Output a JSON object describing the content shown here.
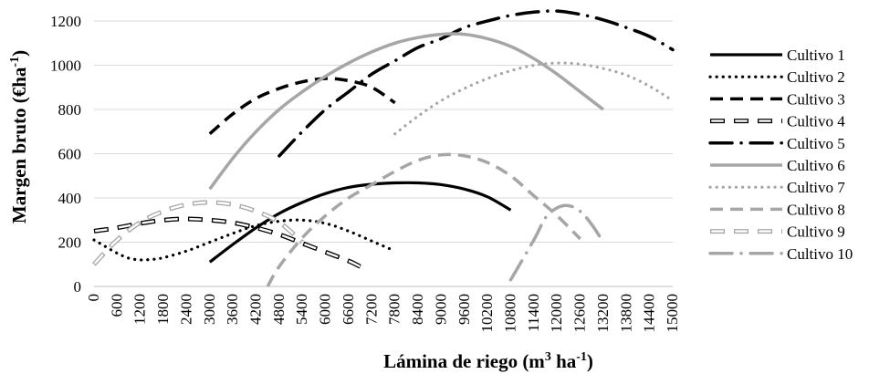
{
  "chart_data": {
    "type": "line",
    "xlabel": "Lámina de riego (m",
    "xlabel_sup": "3",
    "xlabel_suffix": " ha",
    "xlabel_sup2": "-1",
    "xlabel_end": ")",
    "ylabel": "Margen bruto (€ha",
    "ylabel_sup": "-1",
    "ylabel_end": ")",
    "xlim": [
      0,
      15000
    ],
    "ylim": [
      0,
      1200
    ],
    "x_ticks": [
      0,
      600,
      1200,
      1800,
      2400,
      3000,
      3600,
      4200,
      4800,
      5400,
      6000,
      6600,
      7200,
      7800,
      8400,
      9000,
      9600,
      10200,
      10800,
      11400,
      12000,
      12600,
      13200,
      13800,
      14400,
      15000
    ],
    "y_ticks": [
      0,
      200,
      400,
      600,
      800,
      1000,
      1200
    ],
    "grid": "horizontal",
    "legend_position": "right",
    "series": [
      {
        "name": "Cultivo 1",
        "color": "#000000",
        "style": "solid",
        "width": 3.2,
        "points": [
          [
            3000,
            110
          ],
          [
            3600,
            190
          ],
          [
            4200,
            265
          ],
          [
            4800,
            330
          ],
          [
            5400,
            380
          ],
          [
            6000,
            420
          ],
          [
            6600,
            448
          ],
          [
            7200,
            462
          ],
          [
            7800,
            468
          ],
          [
            8400,
            468
          ],
          [
            9000,
            460
          ],
          [
            9600,
            440
          ],
          [
            10200,
            405
          ],
          [
            10800,
            345
          ]
        ]
      },
      {
        "name": "Cultivo 2",
        "color": "#000000",
        "style": "dotted",
        "width": 3.2,
        "points": [
          [
            0,
            210
          ],
          [
            300,
            180
          ],
          [
            600,
            150
          ],
          [
            900,
            128
          ],
          [
            1200,
            120
          ],
          [
            1500,
            122
          ],
          [
            1800,
            130
          ],
          [
            2400,
            160
          ],
          [
            3000,
            200
          ],
          [
            3600,
            240
          ],
          [
            4200,
            275
          ],
          [
            4800,
            295
          ],
          [
            5400,
            300
          ],
          [
            6000,
            285
          ],
          [
            6600,
            250
          ],
          [
            7200,
            205
          ],
          [
            7800,
            160
          ]
        ]
      },
      {
        "name": "Cultivo 3",
        "color": "#000000",
        "style": "dashed",
        "width": 3.5,
        "points": [
          [
            3000,
            690
          ],
          [
            3600,
            780
          ],
          [
            4200,
            850
          ],
          [
            4800,
            895
          ],
          [
            5400,
            925
          ],
          [
            6000,
            940
          ],
          [
            6600,
            930
          ],
          [
            7200,
            900
          ],
          [
            7800,
            830
          ]
        ]
      },
      {
        "name": "Cultivo 4",
        "color": "#000000",
        "style": "hollow-dash",
        "width": 5,
        "points": [
          [
            0,
            250
          ],
          [
            600,
            265
          ],
          [
            1200,
            285
          ],
          [
            1800,
            300
          ],
          [
            2400,
            305
          ],
          [
            3000,
            300
          ],
          [
            3600,
            288
          ],
          [
            4200,
            265
          ],
          [
            4800,
            235
          ],
          [
            5400,
            195
          ],
          [
            6000,
            155
          ],
          [
            6600,
            115
          ],
          [
            6900,
            90
          ]
        ]
      },
      {
        "name": "Cultivo 5",
        "color": "#000000",
        "style": "dashdot",
        "width": 3.5,
        "points": [
          [
            4800,
            590
          ],
          [
            5400,
            700
          ],
          [
            6000,
            800
          ],
          [
            6600,
            880
          ],
          [
            7200,
            960
          ],
          [
            7800,
            1020
          ],
          [
            8400,
            1080
          ],
          [
            9000,
            1120
          ],
          [
            9600,
            1170
          ],
          [
            10200,
            1200
          ],
          [
            10800,
            1225
          ],
          [
            11400,
            1240
          ],
          [
            12000,
            1245
          ],
          [
            12600,
            1230
          ],
          [
            13200,
            1205
          ],
          [
            13800,
            1170
          ],
          [
            14400,
            1130
          ],
          [
            15000,
            1070
          ]
        ]
      },
      {
        "name": "Cultivo 6",
        "color": "#a6a6a6",
        "style": "solid",
        "width": 3.5,
        "points": [
          [
            3000,
            440
          ],
          [
            3600,
            580
          ],
          [
            4200,
            700
          ],
          [
            4800,
            800
          ],
          [
            5400,
            880
          ],
          [
            6000,
            950
          ],
          [
            6600,
            1010
          ],
          [
            7200,
            1060
          ],
          [
            7800,
            1100
          ],
          [
            8400,
            1125
          ],
          [
            9000,
            1140
          ],
          [
            9600,
            1140
          ],
          [
            10200,
            1120
          ],
          [
            10800,
            1085
          ],
          [
            11400,
            1030
          ],
          [
            12000,
            960
          ],
          [
            12600,
            880
          ],
          [
            13200,
            800
          ]
        ]
      },
      {
        "name": "Cultivo 7",
        "color": "#a6a6a6",
        "style": "dotted",
        "width": 3.2,
        "points": [
          [
            7800,
            690
          ],
          [
            8400,
            770
          ],
          [
            9000,
            840
          ],
          [
            9600,
            895
          ],
          [
            10200,
            940
          ],
          [
            10800,
            975
          ],
          [
            11400,
            1000
          ],
          [
            12000,
            1010
          ],
          [
            12600,
            1005
          ],
          [
            13200,
            985
          ],
          [
            13800,
            955
          ],
          [
            14400,
            905
          ],
          [
            15000,
            840
          ]
        ]
      },
      {
        "name": "Cultivo 8",
        "color": "#a6a6a6",
        "style": "dashed",
        "width": 3.5,
        "points": [
          [
            4500,
            0
          ],
          [
            4800,
            90
          ],
          [
            5400,
            220
          ],
          [
            6000,
            320
          ],
          [
            6600,
            400
          ],
          [
            7200,
            460
          ],
          [
            7800,
            520
          ],
          [
            8400,
            570
          ],
          [
            9000,
            595
          ],
          [
            9600,
            590
          ],
          [
            10200,
            560
          ],
          [
            10800,
            500
          ],
          [
            11400,
            410
          ],
          [
            12000,
            320
          ],
          [
            12600,
            215
          ]
        ]
      },
      {
        "name": "Cultivo 9",
        "color": "#a6a6a6",
        "style": "hollow-dash",
        "width": 5,
        "points": [
          [
            0,
            100
          ],
          [
            600,
            210
          ],
          [
            1200,
            290
          ],
          [
            1800,
            340
          ],
          [
            2400,
            370
          ],
          [
            3000,
            380
          ],
          [
            3600,
            370
          ],
          [
            4200,
            340
          ],
          [
            4800,
            290
          ],
          [
            5400,
            200
          ]
        ]
      },
      {
        "name": "Cultivo 10",
        "color": "#a6a6a6",
        "style": "dashdot",
        "width": 3.5,
        "points": [
          [
            10800,
            30
          ],
          [
            11400,
            210
          ],
          [
            11700,
            310
          ],
          [
            12000,
            355
          ],
          [
            12300,
            365
          ],
          [
            12600,
            340
          ],
          [
            12900,
            280
          ],
          [
            13200,
            200
          ]
        ]
      }
    ]
  }
}
